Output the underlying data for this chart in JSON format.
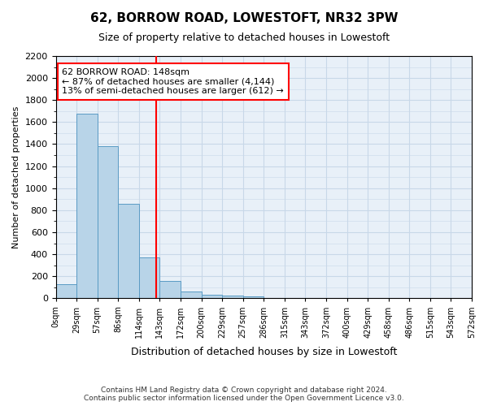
{
  "title": "62, BORROW ROAD, LOWESTOFT, NR32 3PW",
  "subtitle": "Size of property relative to detached houses in Lowestoft",
  "xlabel": "Distribution of detached houses by size in Lowestoft",
  "ylabel": "Number of detached properties",
  "footer_line1": "Contains HM Land Registry data © Crown copyright and database right 2024.",
  "footer_line2": "Contains public sector information licensed under the Open Government Licence v3.0.",
  "bin_labels": [
    "0sqm",
    "29sqm",
    "57sqm",
    "86sqm",
    "114sqm",
    "143sqm",
    "172sqm",
    "200sqm",
    "229sqm",
    "257sqm",
    "286sqm",
    "315sqm",
    "343sqm",
    "372sqm",
    "400sqm",
    "429sqm",
    "458sqm",
    "486sqm",
    "515sqm",
    "543sqm",
    "572sqm"
  ],
  "bar_values": [
    130,
    1680,
    1380,
    860,
    370,
    160,
    65,
    30,
    25,
    20,
    0,
    0,
    0,
    0,
    0,
    0,
    0,
    0,
    0,
    0
  ],
  "bar_color": "#b8d4e8",
  "bar_edge_color": "#5a9bc4",
  "grid_color": "#c8d8e8",
  "background_color": "#e8f0f8",
  "red_line_x": 4.83,
  "annotation_text": "62 BORROW ROAD: 148sqm\n← 87% of detached houses are smaller (4,144)\n13% of semi-detached houses are larger (612) →",
  "annotation_box_color": "white",
  "annotation_box_edge_color": "red",
  "ylim": [
    0,
    2200
  ],
  "yticks": [
    0,
    200,
    400,
    600,
    800,
    1000,
    1200,
    1400,
    1600,
    1800,
    2000,
    2200
  ]
}
